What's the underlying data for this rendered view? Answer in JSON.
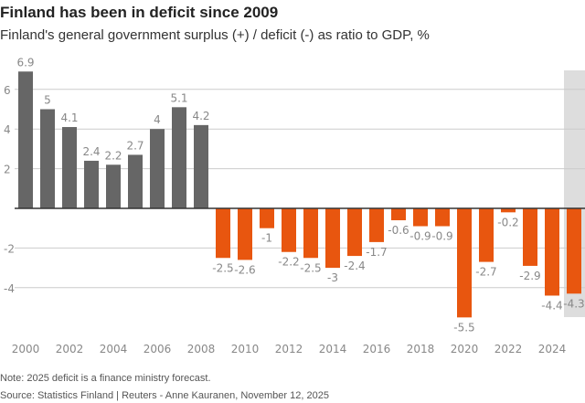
{
  "title": "Finland has been in deficit since 2009",
  "subtitle": "Finland's general government surplus (+) / deficit (-) as ratio to GDP, %",
  "note": "Note: 2025 deficit is a finance ministry forecast.",
  "source": "Source: Statistics Finland | Reuters - Anne Kauranen, November 12, 2025",
  "chart_data": {
    "type": "bar",
    "categories": [
      "2000",
      "2001",
      "2002",
      "2003",
      "2004",
      "2005",
      "2006",
      "2007",
      "2008",
      "2009",
      "2010",
      "2011",
      "2012",
      "2013",
      "2014",
      "2015",
      "2016",
      "2017",
      "2018",
      "2019",
      "2020",
      "2021",
      "2022",
      "2023",
      "2024",
      "2025"
    ],
    "values": [
      6.9,
      5,
      4.1,
      2.4,
      2.2,
      2.7,
      4,
      5.1,
      4.2,
      -2.5,
      -2.6,
      -1,
      -2.2,
      -2.5,
      -3,
      -2.4,
      -1.7,
      -0.6,
      -0.9,
      -0.9,
      -5.5,
      -2.7,
      -0.2,
      -2.9,
      -4.4,
      -4.3
    ],
    "data_labels": [
      "6.9",
      "5",
      "4.1",
      "2.4",
      "2.2",
      "2.7",
      "4",
      "5.1",
      "4.2",
      "-2.5",
      "-2.6",
      "-1",
      "-2.2",
      "-2.5",
      "-3",
      "-2.4",
      "-1.7",
      "-0.6",
      "-0.9",
      "-0.9",
      "-5.5",
      "-2.7",
      "-0.2",
      "-2.9",
      "-4.4",
      "-4.3"
    ],
    "x_tick_labels": [
      "2000",
      "2002",
      "2004",
      "2006",
      "2008",
      "2010",
      "2012",
      "2014",
      "2016",
      "2018",
      "2020",
      "2022",
      "2024"
    ],
    "y_ticks": [
      6,
      4,
      2,
      -2,
      -4
    ],
    "y_tick_labels": [
      "6",
      "4",
      "2",
      "-2",
      "-4"
    ],
    "ylim": [
      -7,
      7
    ],
    "grid": true,
    "highlight_category": "2025",
    "colors": {
      "surplus": "#666666",
      "deficit": "#e8560f",
      "highlight_band": "#dddddd",
      "grid": "#cccccc",
      "axis": "#333333",
      "label": "#888888"
    }
  }
}
